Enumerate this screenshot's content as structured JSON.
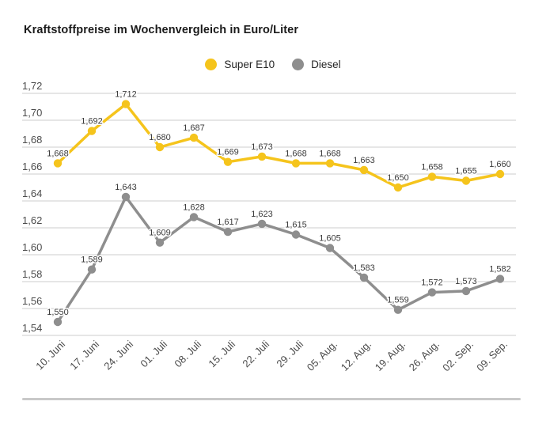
{
  "page": {
    "title": "Kraftstoffpreise im Wochenvergleich in Euro/Liter"
  },
  "chart_data": {
    "type": "line",
    "title": "Kraftstoffpreise im Wochenvergleich in Euro/Liter",
    "categories": [
      "10. Juni",
      "17. Juni",
      "24. Juni",
      "01. Juli",
      "08. Juli",
      "15. Juli",
      "22. Juli",
      "29. Juli",
      "05. Aug.",
      "12. Aug.",
      "19. Aug.",
      "26. Aug.",
      "02. Sep.",
      "09. Sep."
    ],
    "series": [
      {
        "name": "Super E10",
        "color": "#f5c41c",
        "values": [
          1.668,
          1.692,
          1.712,
          1.68,
          1.687,
          1.669,
          1.673,
          1.668,
          1.668,
          1.663,
          1.65,
          1.658,
          1.655,
          1.66
        ]
      },
      {
        "name": "Diesel",
        "color": "#8e8e8e",
        "values": [
          1.55,
          1.589,
          1.643,
          1.609,
          1.628,
          1.617,
          1.623,
          1.615,
          1.605,
          1.583,
          1.559,
          1.572,
          1.573,
          1.582
        ]
      }
    ],
    "ylim": [
      1.54,
      1.72
    ],
    "ytick_step": 0.02,
    "decimal_separator": ",",
    "value_decimals": 3,
    "ytick_decimals": 2,
    "grid": "horizontal",
    "grid_color": "#cccccc",
    "axis_label_color": "#4c4c4c",
    "point_label_color": "#3b3b3b",
    "legend_position": "top-center",
    "point_labels": true,
    "xlabel": "",
    "ylabel": "Euro/Liter"
  }
}
